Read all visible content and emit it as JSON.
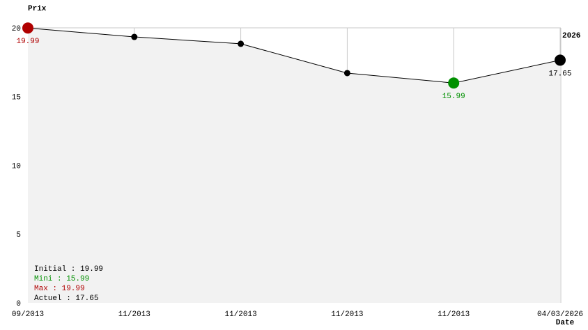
{
  "chart_data": {
    "type": "line",
    "y_label": "Prix",
    "x_label": "Date",
    "annotation": "2026",
    "categories": [
      "09/2013",
      "11/2013",
      "11/2013",
      "11/2013",
      "11/2013",
      "04/03/2026"
    ],
    "values": [
      19.99,
      19.34,
      18.84,
      16.71,
      15.99,
      17.65
    ],
    "value_labels": [
      "19.99",
      null,
      null,
      null,
      "15.99",
      "17.65"
    ],
    "point_colors": [
      "#b00000",
      "#000000",
      "#000000",
      "#000000",
      "#009000",
      "#000000"
    ],
    "color": "#000000",
    "area_color": "#f2f2f2",
    "ylim": [
      0,
      20
    ],
    "yticks": [
      0,
      5,
      10,
      15,
      20
    ],
    "summary": [
      {
        "text": "Initial : 19.99",
        "color": "#000000"
      },
      {
        "text": "Mini : 15.99",
        "color": "#009000"
      },
      {
        "text": "Max : 19.99",
        "color": "#b00000"
      },
      {
        "text": "Actuel : 17.65",
        "color": "#000000"
      }
    ]
  }
}
